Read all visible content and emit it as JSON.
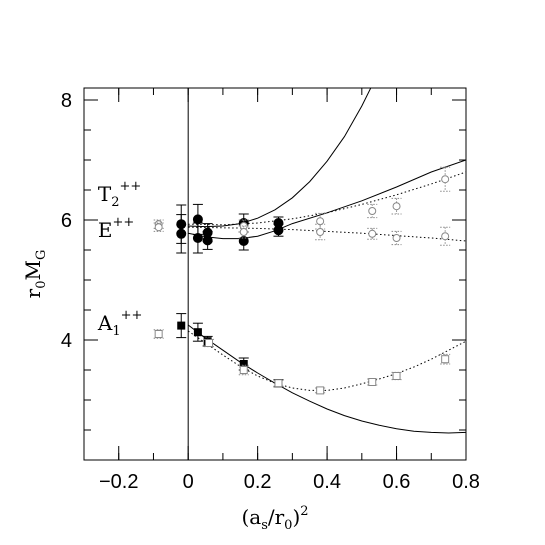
{
  "chart_data": {
    "type": "scatter",
    "title": "",
    "xlabel": {
      "base": "(a",
      "sub1": "s",
      "mid": "/r",
      "sub2": "0",
      "close": ")",
      "sup": "2"
    },
    "ylabel": {
      "base": "r",
      "sub1": "0",
      "mid": "M",
      "sub2": "G"
    },
    "xlim": [
      -0.3,
      0.8
    ],
    "ylim": [
      2.0,
      8.2
    ],
    "x_ticks": [
      {
        "value": -0.2,
        "label": "−0.2"
      },
      {
        "value": 0,
        "label": "0"
      },
      {
        "value": 0.2,
        "label": "0.2"
      },
      {
        "value": 0.4,
        "label": "0.4"
      },
      {
        "value": 0.6,
        "label": "0.6"
      },
      {
        "value": 0.8,
        "label": "0.8"
      }
    ],
    "y_ticks": [
      {
        "value": 4,
        "label": "4"
      },
      {
        "value": 6,
        "label": "6"
      },
      {
        "value": 8,
        "label": "8"
      }
    ],
    "x_minor_step": 0.1,
    "y_minor_step": 0.5,
    "series_labels": [
      {
        "name": "T",
        "sub": "2",
        "sup": "++",
        "at": [
          -0.26,
          6.32
        ]
      },
      {
        "name": "E",
        "sub": "",
        "sup": "++",
        "at": [
          -0.26,
          5.72
        ]
      },
      {
        "name": "A",
        "sub": "1",
        "sup": "++",
        "at": [
          -0.26,
          4.17
        ]
      }
    ],
    "series": [
      {
        "id": "T2",
        "marker": "filled-circle",
        "points": [
          {
            "x": -0.02,
            "y": 5.93,
            "err": 0.32
          },
          {
            "x": 0.028,
            "y": 6.01,
            "err": 0.25
          },
          {
            "x": 0.056,
            "y": 5.79,
            "err": 0.15
          },
          {
            "x": 0.16,
            "y": 5.95,
            "err": 0.15
          },
          {
            "x": 0.26,
            "y": 5.95,
            "err": 0.1
          }
        ]
      },
      {
        "id": "E",
        "marker": "filled-circle",
        "points": [
          {
            "x": -0.02,
            "y": 5.77,
            "err": 0.32
          },
          {
            "x": 0.028,
            "y": 5.7,
            "err": 0.25
          },
          {
            "x": 0.056,
            "y": 5.66,
            "err": 0.15
          },
          {
            "x": 0.16,
            "y": 5.65,
            "err": 0.15
          },
          {
            "x": 0.26,
            "y": 5.83,
            "err": 0.1
          }
        ]
      },
      {
        "id": "A1",
        "marker": "filled-square",
        "points": [
          {
            "x": -0.02,
            "y": 4.24,
            "err": 0.2
          },
          {
            "x": 0.028,
            "y": 4.13,
            "err": 0.15
          },
          {
            "x": 0.056,
            "y": 3.98,
            "err": 0.08
          },
          {
            "x": 0.16,
            "y": 3.6,
            "err": 0.1
          },
          {
            "x": 0.26,
            "y": 3.28,
            "err": 0.06
          }
        ]
      },
      {
        "id": "T2-open",
        "marker": "open-circle",
        "points": [
          {
            "x": -0.085,
            "y": 5.93,
            "err": 0.07
          },
          {
            "x": 0.16,
            "y": 5.9,
            "err": 0.1
          },
          {
            "x": 0.38,
            "y": 5.98,
            "err": 0.13
          },
          {
            "x": 0.53,
            "y": 6.15,
            "err": 0.11
          },
          {
            "x": 0.6,
            "y": 6.23,
            "err": 0.13
          },
          {
            "x": 0.74,
            "y": 6.68,
            "err": 0.2
          }
        ]
      },
      {
        "id": "E-open",
        "marker": "open-circle",
        "points": [
          {
            "x": -0.085,
            "y": 5.88,
            "err": 0.07
          },
          {
            "x": 0.16,
            "y": 5.8,
            "err": 0.1
          },
          {
            "x": 0.38,
            "y": 5.8,
            "err": 0.13
          },
          {
            "x": 0.53,
            "y": 5.77,
            "err": 0.09
          },
          {
            "x": 0.6,
            "y": 5.7,
            "err": 0.11
          },
          {
            "x": 0.74,
            "y": 5.73,
            "err": 0.15
          }
        ]
      },
      {
        "id": "A1-open",
        "marker": "open-square",
        "points": [
          {
            "x": -0.085,
            "y": 4.1,
            "err": 0.07
          },
          {
            "x": 0.06,
            "y": 3.95,
            "err": 0.06
          },
          {
            "x": 0.16,
            "y": 3.5,
            "err": 0.08
          },
          {
            "x": 0.26,
            "y": 3.28,
            "err": 0.05
          },
          {
            "x": 0.38,
            "y": 3.16,
            "err": 0.04
          },
          {
            "x": 0.53,
            "y": 3.3,
            "err": 0.05
          },
          {
            "x": 0.6,
            "y": 3.4,
            "err": 0.06
          },
          {
            "x": 0.74,
            "y": 3.68,
            "err": 0.08
          }
        ]
      }
    ],
    "curves": [
      {
        "id": "T2-fit-solid",
        "style": "solid",
        "points": [
          [
            0,
            5.9
          ],
          [
            0.05,
            5.89
          ],
          [
            0.1,
            5.9
          ],
          [
            0.15,
            5.94
          ],
          [
            0.2,
            6.03
          ],
          [
            0.25,
            6.17
          ],
          [
            0.3,
            6.37
          ],
          [
            0.35,
            6.64
          ],
          [
            0.4,
            6.98
          ],
          [
            0.45,
            7.39
          ],
          [
            0.5,
            7.9
          ],
          [
            0.53,
            8.25
          ]
        ]
      },
      {
        "id": "E-fit-solid",
        "style": "solid",
        "points": [
          [
            0,
            5.78
          ],
          [
            0.05,
            5.72
          ],
          [
            0.1,
            5.69
          ],
          [
            0.15,
            5.69
          ],
          [
            0.2,
            5.73
          ],
          [
            0.25,
            5.82
          ],
          [
            0.3,
            5.94
          ],
          [
            0.4,
            6.12
          ],
          [
            0.5,
            6.32
          ],
          [
            0.6,
            6.55
          ],
          [
            0.7,
            6.8
          ],
          [
            0.8,
            7.0
          ]
        ]
      },
      {
        "id": "A1-fit-solid",
        "style": "solid",
        "points": [
          [
            0,
            4.25
          ],
          [
            0.05,
            4.03
          ],
          [
            0.1,
            3.83
          ],
          [
            0.15,
            3.63
          ],
          [
            0.2,
            3.45
          ],
          [
            0.25,
            3.28
          ],
          [
            0.3,
            3.12
          ],
          [
            0.35,
            2.98
          ],
          [
            0.4,
            2.85
          ],
          [
            0.45,
            2.74
          ],
          [
            0.5,
            2.65
          ],
          [
            0.55,
            2.58
          ],
          [
            0.6,
            2.52
          ],
          [
            0.65,
            2.48
          ],
          [
            0.7,
            2.46
          ],
          [
            0.75,
            2.45
          ],
          [
            0.8,
            2.46
          ]
        ]
      },
      {
        "id": "T2-fit-dotted",
        "style": "dotted",
        "points": [
          [
            0,
            5.93
          ],
          [
            0.1,
            5.92
          ],
          [
            0.2,
            5.95
          ],
          [
            0.3,
            6.02
          ],
          [
            0.4,
            6.12
          ],
          [
            0.5,
            6.26
          ],
          [
            0.6,
            6.42
          ],
          [
            0.7,
            6.6
          ],
          [
            0.8,
            6.8
          ]
        ]
      },
      {
        "id": "E-fit-dotted",
        "style": "dotted",
        "points": [
          [
            0,
            5.88
          ],
          [
            0.1,
            5.87
          ],
          [
            0.2,
            5.86
          ],
          [
            0.3,
            5.84
          ],
          [
            0.4,
            5.81
          ],
          [
            0.5,
            5.78
          ],
          [
            0.6,
            5.74
          ],
          [
            0.7,
            5.7
          ],
          [
            0.8,
            5.65
          ]
        ]
      },
      {
        "id": "A1-fit-dotted",
        "style": "dotted",
        "points": [
          [
            0,
            4.15
          ],
          [
            0.05,
            3.95
          ],
          [
            0.1,
            3.75
          ],
          [
            0.15,
            3.56
          ],
          [
            0.2,
            3.4
          ],
          [
            0.25,
            3.28
          ],
          [
            0.3,
            3.2
          ],
          [
            0.35,
            3.16
          ],
          [
            0.4,
            3.16
          ],
          [
            0.45,
            3.2
          ],
          [
            0.5,
            3.27
          ],
          [
            0.55,
            3.35
          ],
          [
            0.6,
            3.44
          ],
          [
            0.65,
            3.55
          ],
          [
            0.7,
            3.68
          ],
          [
            0.75,
            3.83
          ],
          [
            0.8,
            3.98
          ]
        ]
      }
    ],
    "vertical_line_x": 0,
    "grid": false,
    "legend": "none"
  }
}
